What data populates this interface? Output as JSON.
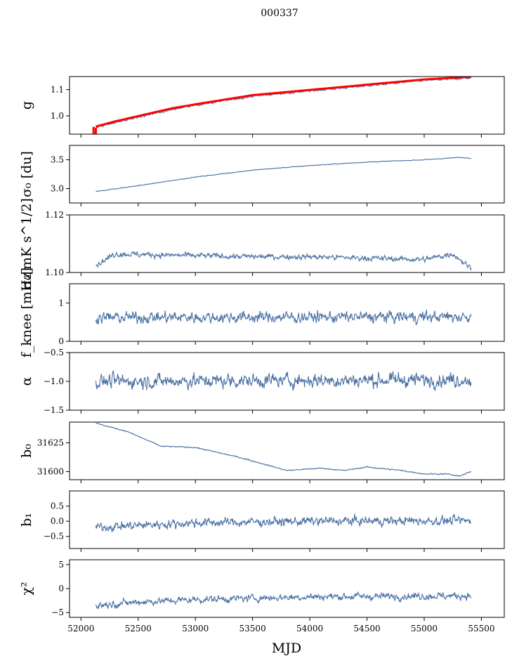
{
  "suptitle": "000337",
  "chart_data": {
    "type": "line",
    "xlabel": "MJD",
    "xlim": [
      51900,
      55700
    ],
    "xticks": [
      52000,
      52500,
      53000,
      53500,
      54000,
      54500,
      55000,
      55500
    ],
    "x_start": 52130,
    "x_end": 55410,
    "series_color": "#4c72a4",
    "accent_color": "#ff0000",
    "panels": [
      {
        "key": "g",
        "ylabel": "g",
        "ylim": [
          0.93,
          1.15
        ],
        "yticks": [
          1.0,
          1.1
        ],
        "ytick_labels": [
          "1.0",
          "1.1"
        ],
        "trend": [
          [
            52130,
            0.955
          ],
          [
            52300,
            0.975
          ],
          [
            52600,
            1.005
          ],
          [
            52800,
            1.025
          ],
          [
            53000,
            1.04
          ],
          [
            53500,
            1.075
          ],
          [
            54000,
            1.095
          ],
          [
            54500,
            1.115
          ],
          [
            55000,
            1.135
          ],
          [
            55410,
            1.145
          ]
        ],
        "noise": 0.003,
        "red_overlay": true
      },
      {
        "key": "sigma0_du",
        "ylabel": "σ₀ [du]",
        "ylim": [
          2.75,
          3.75
        ],
        "yticks": [
          3.0,
          3.5
        ],
        "ytick_labels": [
          "3.0",
          "3.5"
        ],
        "trend": [
          [
            52130,
            2.95
          ],
          [
            52500,
            3.05
          ],
          [
            53000,
            3.2
          ],
          [
            53500,
            3.32
          ],
          [
            54000,
            3.4
          ],
          [
            54500,
            3.46
          ],
          [
            55000,
            3.5
          ],
          [
            55300,
            3.54
          ],
          [
            55410,
            3.53
          ]
        ],
        "noise": 0.005
      },
      {
        "key": "sigma0_mK",
        "ylabel": "σ₀[mK s^1/2]",
        "ylim": [
          1.1,
          1.12
        ],
        "yticks": [
          1.1,
          1.12
        ],
        "ytick_labels": [
          "1.10",
          "1.12"
        ],
        "trend": [
          [
            52130,
            1.1025
          ],
          [
            52300,
            1.1065
          ],
          [
            52800,
            1.106
          ],
          [
            53500,
            1.1055
          ],
          [
            54000,
            1.1055
          ],
          [
            54500,
            1.105
          ],
          [
            55000,
            1.1045
          ],
          [
            55250,
            1.1065
          ],
          [
            55410,
            1.1015
          ]
        ],
        "noise": 0.0008
      },
      {
        "key": "fknee",
        "ylabel": "f_knee [mHz]",
        "ylim": [
          0,
          1.5
        ],
        "yticks": [
          0,
          1
        ],
        "ytick_labels": [
          "0",
          "1"
        ],
        "trend": [
          [
            52130,
            0.62
          ],
          [
            55410,
            0.64
          ]
        ],
        "noise": 0.12
      },
      {
        "key": "alpha",
        "ylabel": "α",
        "ylim": [
          -1.5,
          -0.5
        ],
        "yticks": [
          -1.5,
          -1.0,
          -0.5
        ],
        "ytick_labels": [
          "−1.5",
          "−1.0",
          "−0.5"
        ],
        "trend": [
          [
            52130,
            -1.0
          ],
          [
            55410,
            -0.97
          ]
        ],
        "noise": 0.1
      },
      {
        "key": "b0",
        "ylabel": "b₀",
        "ylim": [
          31593,
          31643
        ],
        "yticks": [
          31600,
          31625
        ],
        "ytick_labels": [
          "31600",
          "31625"
        ],
        "trend": [
          [
            52130,
            31642
          ],
          [
            52400,
            31635
          ],
          [
            52700,
            31622
          ],
          [
            53000,
            31621
          ],
          [
            53400,
            31612
          ],
          [
            53800,
            31601
          ],
          [
            54100,
            31603
          ],
          [
            54300,
            31601
          ],
          [
            54500,
            31604
          ],
          [
            54800,
            31601
          ],
          [
            55000,
            31598
          ],
          [
            55200,
            31598
          ],
          [
            55300,
            31596
          ],
          [
            55410,
            31600
          ]
        ],
        "noise": 0.4
      },
      {
        "key": "b1",
        "ylabel": "b₁",
        "ylim": [
          -0.9,
          1.0
        ],
        "yticks": [
          -0.5,
          0.0,
          0.5
        ],
        "ytick_labels": [
          "−0.5",
          "0.0",
          "0.5"
        ],
        "trend": [
          [
            52130,
            -0.2
          ],
          [
            53000,
            -0.05
          ],
          [
            54000,
            0.0
          ],
          [
            55410,
            0.02
          ]
        ],
        "noise": 0.12
      },
      {
        "key": "chi2",
        "ylabel": "χ²",
        "ylim": [
          -6,
          6
        ],
        "yticks": [
          -5,
          0,
          5
        ],
        "ytick_labels": [
          "−5",
          "0",
          "5"
        ],
        "trend": [
          [
            52130,
            -3.5
          ],
          [
            52500,
            -2.8
          ],
          [
            53000,
            -2.3
          ],
          [
            54000,
            -1.7
          ],
          [
            55410,
            -1.5
          ]
        ],
        "noise": 0.6
      }
    ]
  }
}
